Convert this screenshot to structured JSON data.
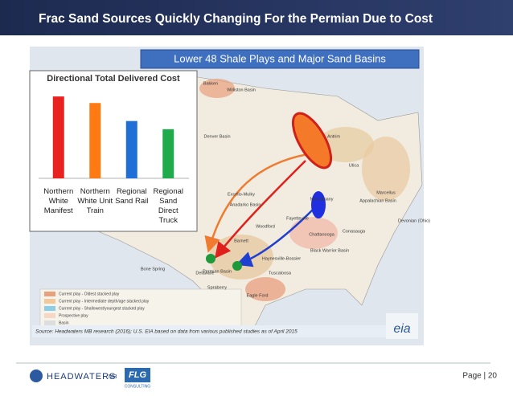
{
  "header": {
    "title": "Frac Sand Sources Quickly Changing For the Permian Due to Cost"
  },
  "map": {
    "title": "Lower 48 Shale Plays and Major Sand Basins",
    "labels": [
      "Bakken",
      "Williston Basin",
      "Marcellus",
      "Utica",
      "Antrim",
      "Appalachian Basin",
      "Devonian (Ohio)",
      "New Albany",
      "Fayetteville",
      "Woodford",
      "Barnett",
      "Haynesville-Bossier",
      "Eagle Ford",
      "Permian Basin",
      "Tuscaloosa",
      "Conasauga",
      "Chattanooga",
      "Denver Basin",
      "Anadarko Basin",
      "Excello-Mulky",
      "Bone Spring",
      "Delaware",
      "Spraberry",
      "Black Warrior Basin"
    ],
    "legend": [
      "Current play - Oldest stacked play",
      "Current play - Intermediate depth/age stacked play",
      "Current play - Shallowest/youngest stacked play",
      "Prospective play",
      "Basin"
    ],
    "logo": "eia"
  },
  "chart_data": {
    "type": "bar",
    "title": "Directional Total Delivered Cost",
    "categories": [
      "Northern White Manifest",
      "Northern White Unit Train",
      "Regional Sand Rail",
      "Regional Sand Direct Truck"
    ],
    "values": [
      100,
      92,
      70,
      60
    ],
    "colors": [
      "#e8231f",
      "#ff7a12",
      "#1f6fd6",
      "#1faa4c"
    ],
    "ylim": [
      0,
      105
    ]
  },
  "source": "Source: Headwaters MB research (2016); U.S. EIA based on data from various published studies as of April 2015",
  "footer": {
    "page": "Page | 20",
    "logo1": "HEADWATERS",
    "logo1_suffix": "MB",
    "logo2": "FLG",
    "logo2_sub": "CONSULTING"
  }
}
